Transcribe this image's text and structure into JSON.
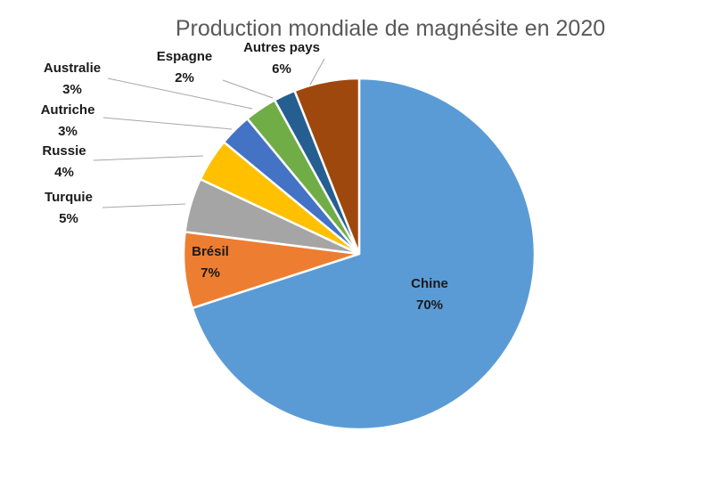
{
  "chart_data": {
    "type": "pie",
    "title": "Production mondiale de magnésite en 2020",
    "start_angle_deg": 0,
    "direction": "clockwise",
    "legend": "none",
    "slices": [
      {
        "name": "Chine",
        "value": 70,
        "label": "70%",
        "color": "#5b9bd5"
      },
      {
        "name": "Brésil",
        "value": 7,
        "label": "7%",
        "color": "#ed7d31"
      },
      {
        "name": "Turquie",
        "value": 5,
        "label": "5%",
        "color": "#a5a5a5"
      },
      {
        "name": "Russie",
        "value": 4,
        "label": "4%",
        "color": "#ffc000"
      },
      {
        "name": "Autriche",
        "value": 3,
        "label": "3%",
        "color": "#4472c4"
      },
      {
        "name": "Australie",
        "value": 3,
        "label": "3%",
        "color": "#70ad47"
      },
      {
        "name": "Espagne",
        "value": 2,
        "label": "2%",
        "color": "#255e91"
      },
      {
        "name": "Autres pays",
        "value": 6,
        "label": "6%",
        "color": "#9e480e"
      }
    ]
  }
}
